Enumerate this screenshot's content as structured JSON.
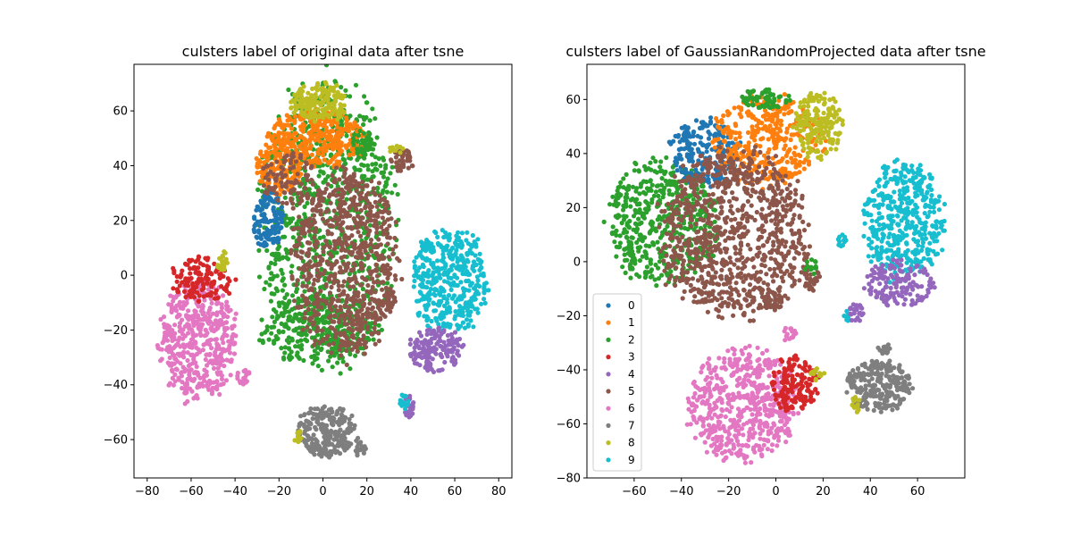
{
  "chart_data": [
    {
      "type": "scatter",
      "title": "culsters label of original data after tsne",
      "xlabel": "",
      "ylabel": "",
      "xlim": [
        -86,
        86
      ],
      "ylim": [
        -74,
        77
      ],
      "xticks": [
        -80,
        -60,
        -40,
        -20,
        0,
        20,
        40,
        60,
        80
      ],
      "yticks": [
        -60,
        -40,
        -20,
        0,
        20,
        40,
        60
      ],
      "legend": "none",
      "clusters": [
        {
          "label": "7",
          "color": "#7f7f7f",
          "cx": 2,
          "cy": -57,
          "rx": 13,
          "ry": 9,
          "n": 260
        },
        {
          "label": "7",
          "color": "#7f7f7f",
          "cx": 17,
          "cy": -63,
          "rx": 2.5,
          "ry": 3,
          "n": 20
        },
        {
          "label": "8",
          "color": "#bcbd22",
          "cx": -11,
          "cy": -59,
          "rx": 2,
          "ry": 2,
          "n": 14
        },
        {
          "label": "6",
          "color": "#e377c2",
          "cx": -57,
          "cy": -24,
          "rx": 17,
          "ry": 21,
          "n": 480
        },
        {
          "label": "3",
          "color": "#d62728",
          "cx": -55,
          "cy": -2,
          "rx": 14,
          "ry": 8,
          "n": 140
        },
        {
          "label": "8",
          "color": "#bcbd22",
          "cx": -46,
          "cy": 5,
          "rx": 3,
          "ry": 4,
          "n": 22
        },
        {
          "label": "6",
          "color": "#e377c2",
          "cx": -36,
          "cy": -37,
          "rx": 3,
          "ry": 3,
          "n": 20
        },
        {
          "label": "2",
          "color": "#2ca02c",
          "cx": 2,
          "cy": 20,
          "rx": 30,
          "ry": 50,
          "n": 900
        },
        {
          "label": "2",
          "color": "#2ca02c",
          "cx": -2,
          "cy": -20,
          "rx": 26,
          "ry": 12,
          "n": 240
        },
        {
          "label": "1",
          "color": "#ff7f0e",
          "cx": -2,
          "cy": 50,
          "rx": 22,
          "ry": 10,
          "n": 320
        },
        {
          "label": "1",
          "color": "#ff7f0e",
          "cx": -20,
          "cy": 40,
          "rx": 10,
          "ry": 10,
          "n": 140
        },
        {
          "label": "8",
          "color": "#bcbd22",
          "cx": -2,
          "cy": 63,
          "rx": 12,
          "ry": 7,
          "n": 180
        },
        {
          "label": "0",
          "color": "#1f77b4",
          "cx": -25,
          "cy": 20,
          "rx": 7,
          "ry": 10,
          "n": 120
        },
        {
          "label": "5",
          "color": "#8c564b",
          "cx": -15,
          "cy": 35,
          "rx": 12,
          "ry": 10,
          "n": 90
        },
        {
          "label": "5",
          "color": "#8c564b",
          "cx": 10,
          "cy": 5,
          "rx": 23,
          "ry": 33,
          "n": 760
        },
        {
          "label": "5",
          "color": "#8c564b",
          "cx": 36,
          "cy": 42,
          "rx": 5,
          "ry": 4,
          "n": 40
        },
        {
          "label": "5",
          "color": "#8c564b",
          "cx": 30,
          "cy": -10,
          "rx": 3,
          "ry": 4,
          "n": 22
        },
        {
          "label": "8",
          "color": "#bcbd22",
          "cx": 33,
          "cy": 46,
          "rx": 3,
          "ry": 1.5,
          "n": 12
        },
        {
          "label": "2",
          "color": "#2ca02c",
          "cx": 18,
          "cy": 48,
          "rx": 5,
          "ry": 5,
          "n": 40
        },
        {
          "label": "9",
          "color": "#17becf",
          "cx": 58,
          "cy": -2,
          "rx": 17,
          "ry": 18,
          "n": 420
        },
        {
          "label": "4",
          "color": "#9467bd",
          "cx": 51,
          "cy": -27,
          "rx": 12,
          "ry": 8,
          "n": 160
        },
        {
          "label": "9",
          "color": "#17becf",
          "cx": 47,
          "cy": 11,
          "rx": 2,
          "ry": 2,
          "n": 12
        },
        {
          "label": "4",
          "color": "#9467bd",
          "cx": 39,
          "cy": -48,
          "rx": 3,
          "ry": 4,
          "n": 26
        },
        {
          "label": "9",
          "color": "#17becf",
          "cx": 37,
          "cy": -46,
          "rx": 2,
          "ry": 3,
          "n": 14
        }
      ]
    },
    {
      "type": "scatter",
      "title": "culsters label of GaussianRandomProjected data after tsne",
      "xlabel": "",
      "ylabel": "",
      "xlim": [
        -80,
        80
      ],
      "ylim": [
        -80,
        73
      ],
      "xticks": [
        -60,
        -40,
        -20,
        0,
        20,
        40,
        60
      ],
      "yticks": [
        -80,
        -60,
        -40,
        -20,
        0,
        20,
        40,
        60
      ],
      "legend": "lower-left",
      "legend_entries": [
        {
          "label": "0",
          "color": "#1f77b4"
        },
        {
          "label": "1",
          "color": "#ff7f0e"
        },
        {
          "label": "2",
          "color": "#2ca02c"
        },
        {
          "label": "3",
          "color": "#d62728"
        },
        {
          "label": "4",
          "color": "#9467bd"
        },
        {
          "label": "5",
          "color": "#8c564b"
        },
        {
          "label": "6",
          "color": "#e377c2"
        },
        {
          "label": "7",
          "color": "#7f7f7f"
        },
        {
          "label": "8",
          "color": "#bcbd22"
        },
        {
          "label": "9",
          "color": "#17becf"
        }
      ],
      "clusters": [
        {
          "label": "2",
          "color": "#2ca02c",
          "cx": -48,
          "cy": 15,
          "rx": 22,
          "ry": 22,
          "n": 520
        },
        {
          "label": "0",
          "color": "#1f77b4",
          "cx": -30,
          "cy": 40,
          "rx": 14,
          "ry": 12,
          "n": 220
        },
        {
          "label": "1",
          "color": "#ff7f0e",
          "cx": -3,
          "cy": 45,
          "rx": 22,
          "ry": 16,
          "n": 360
        },
        {
          "label": "2",
          "color": "#2ca02c",
          "cx": -5,
          "cy": 60,
          "rx": 10,
          "ry": 4,
          "n": 60
        },
        {
          "label": "8",
          "color": "#bcbd22",
          "cx": 18,
          "cy": 50,
          "rx": 10,
          "ry": 12,
          "n": 170
        },
        {
          "label": "5",
          "color": "#8c564b",
          "cx": -18,
          "cy": 10,
          "rx": 30,
          "ry": 30,
          "n": 900
        },
        {
          "label": "5",
          "color": "#8c564b",
          "cx": -1,
          "cy": -15,
          "rx": 4,
          "ry": 4,
          "n": 36
        },
        {
          "label": "5",
          "color": "#8c564b",
          "cx": 15,
          "cy": -6,
          "rx": 4,
          "ry": 5,
          "n": 30
        },
        {
          "label": "2",
          "color": "#2ca02c",
          "cx": 15,
          "cy": -2,
          "rx": 3,
          "ry": 3,
          "n": 14
        },
        {
          "label": "9",
          "color": "#17becf",
          "cx": 54,
          "cy": 15,
          "rx": 16,
          "ry": 22,
          "n": 440
        },
        {
          "label": "4",
          "color": "#9467bd",
          "cx": 52,
          "cy": -8,
          "rx": 14,
          "ry": 8,
          "n": 150
        },
        {
          "label": "9",
          "color": "#17becf",
          "cx": 28,
          "cy": 8,
          "rx": 2,
          "ry": 2.5,
          "n": 12
        },
        {
          "label": "9",
          "color": "#17becf",
          "cx": 30,
          "cy": -20,
          "rx": 2,
          "ry": 2,
          "n": 10
        },
        {
          "label": "4",
          "color": "#9467bd",
          "cx": 34,
          "cy": -19,
          "rx": 3,
          "ry": 4,
          "n": 24
        },
        {
          "label": "6",
          "color": "#e377c2",
          "cx": -14,
          "cy": -53,
          "rx": 22,
          "ry": 20,
          "n": 560
        },
        {
          "label": "3",
          "color": "#d62728",
          "cx": 8,
          "cy": -45,
          "rx": 10,
          "ry": 10,
          "n": 160
        },
        {
          "label": "6",
          "color": "#e377c2",
          "cx": 6,
          "cy": -27,
          "rx": 3,
          "ry": 3,
          "n": 16
        },
        {
          "label": "8",
          "color": "#bcbd22",
          "cx": 18,
          "cy": -41,
          "rx": 3,
          "ry": 3,
          "n": 16
        },
        {
          "label": "7",
          "color": "#7f7f7f",
          "cx": 44,
          "cy": -46,
          "rx": 13,
          "ry": 9,
          "n": 260
        },
        {
          "label": "7",
          "color": "#7f7f7f",
          "cx": 46,
          "cy": -32,
          "rx": 3,
          "ry": 2,
          "n": 14
        },
        {
          "label": "8",
          "color": "#bcbd22",
          "cx": 34,
          "cy": -53,
          "rx": 2,
          "ry": 3,
          "n": 14
        }
      ]
    }
  ]
}
